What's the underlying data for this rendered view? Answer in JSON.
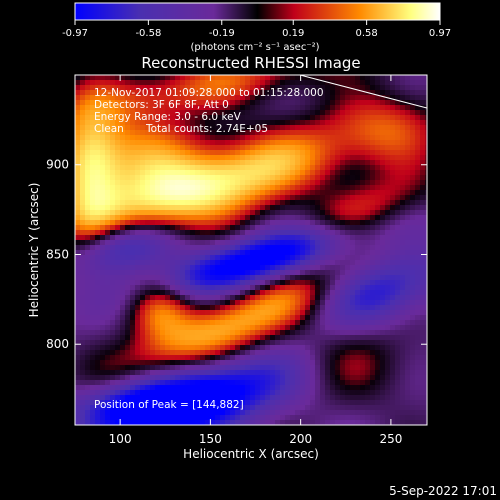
{
  "chart_data": {
    "type": "heatmap",
    "title": "Reconstructed RHESSI Image",
    "xlabel": "Heliocentric X (arcsec)",
    "ylabel": "Heliocentric Y (arcsec)",
    "xlim": [
      75,
      270
    ],
    "ylim": [
      755,
      950
    ],
    "xticks": [
      100,
      150,
      200,
      250
    ],
    "yticks": [
      800,
      850,
      900
    ],
    "colorbar": {
      "range": [
        -0.97,
        0.97
      ],
      "tick_values": [
        -0.97,
        -0.58,
        -0.19,
        0.19,
        0.58,
        0.97
      ],
      "tick_labels": [
        "-0.97",
        "-0.58",
        "-0.19",
        "0.19",
        "0.58",
        "0.97"
      ],
      "unit": "(photons cm⁻² s⁻¹ asec⁻²)",
      "colors": [
        "#0000ff",
        "#4a2fb0",
        "#6a2a9a",
        "#000000",
        "#c0001a",
        "#ff8a00",
        "#ffff80",
        "#ffffff"
      ]
    },
    "sources": [
      {
        "x": 148,
        "y": 888,
        "peak": 0.97
      },
      {
        "x": 170,
        "y": 808,
        "peak": 0.7
      },
      {
        "x": 83,
        "y": 905,
        "peak": 0.8
      }
    ],
    "annotations": {
      "time": "12-Nov-2017 01:09:28.000 to 01:15:28.000",
      "detectors": "Detectors: 3F 6F 8F, Att 0",
      "energy": "Energy Range: 3.0 - 6.0 keV",
      "method": "Clean",
      "counts": "Total counts: 2.74E+05",
      "peak": "Position of Peak = [144,882]"
    }
  },
  "footer": {
    "date": "5-Sep-2022 17:01"
  }
}
